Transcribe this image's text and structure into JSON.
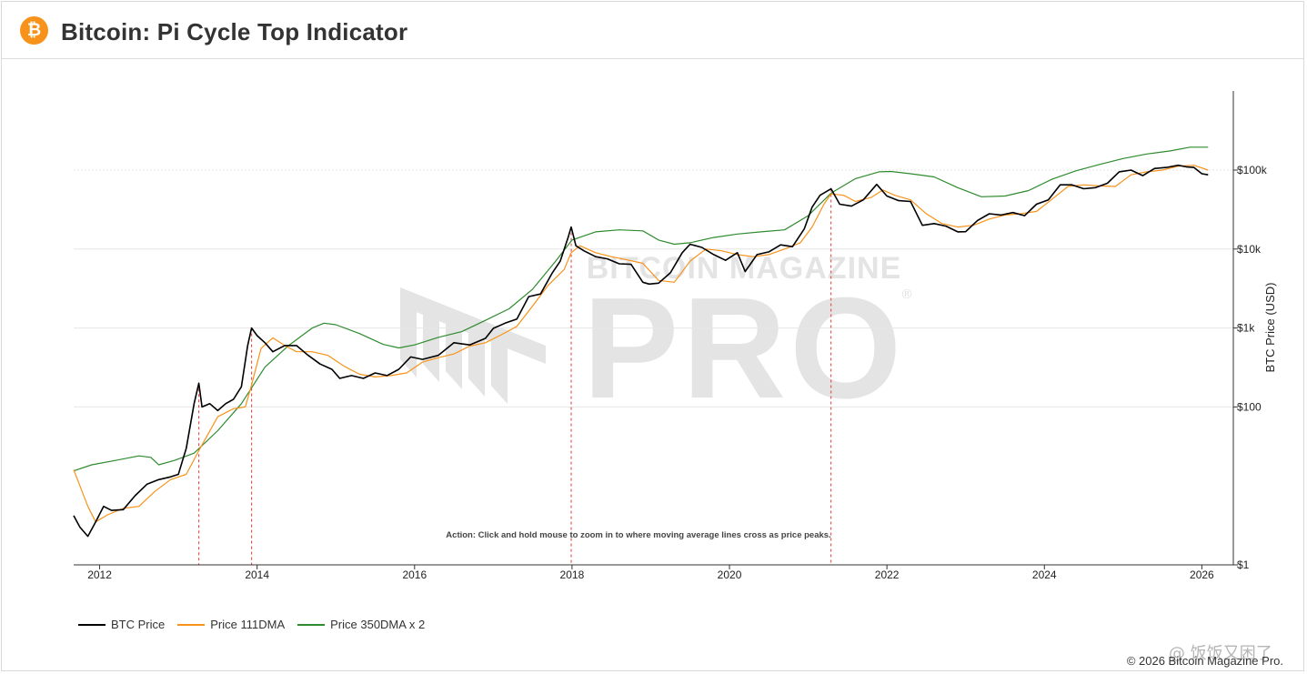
{
  "header": {
    "logo_glyph": "₿",
    "title": "Bitcoin: Pi Cycle Top Indicator"
  },
  "watermark": {
    "line1": "BITCOIN MAGAZINE",
    "line2": "PRO",
    "corner_text": "@ 饭饭又困了"
  },
  "annotation": "Action: Click and hold mouse to zoom in to where moving average lines cross as price peaks.",
  "copyright": "© 2026 Bitcoin Magazine Pro.",
  "colors": {
    "btc_price": "#000000",
    "dma111": "#f7931a",
    "dma350x2": "#2e8b2e",
    "cross_line": "#e53935",
    "grid": "#e6e6e6",
    "watermark": "#e4e4e4"
  },
  "chart_data": {
    "type": "line",
    "title": "Bitcoin: Pi Cycle Top Indicator",
    "xlabel": "",
    "ylabel": "BTC Price (USD)",
    "y_scale": "log",
    "ylim": [
      1,
      1000000
    ],
    "xlim": [
      2011.67,
      2026.4
    ],
    "x_ticks": [
      "2012",
      "2014",
      "2016",
      "2018",
      "2020",
      "2022",
      "2024",
      "2026"
    ],
    "y_ticks": [
      {
        "value": 1,
        "label": "$1"
      },
      {
        "value": 100,
        "label": "$100"
      },
      {
        "value": 1000,
        "label": "$1k"
      },
      {
        "value": 10000,
        "label": "$10k"
      },
      {
        "value": 100000,
        "label": "$100k"
      }
    ],
    "legend_position": "bottom-left",
    "cross_events": [
      2013.26,
      2013.93,
      2017.99,
      2021.29
    ],
    "series": [
      {
        "name": "BTC Price",
        "x": [
          2011.67,
          2011.75,
          2011.85,
          2011.95,
          2012.05,
          2012.15,
          2012.3,
          2012.45,
          2012.6,
          2012.75,
          2012.9,
          2013.0,
          2013.1,
          2013.2,
          2013.26,
          2013.3,
          2013.4,
          2013.5,
          2013.6,
          2013.7,
          2013.8,
          2013.88,
          2013.93,
          2014.0,
          2014.1,
          2014.2,
          2014.35,
          2014.5,
          2014.65,
          2014.8,
          2014.95,
          2015.05,
          2015.2,
          2015.35,
          2015.5,
          2015.65,
          2015.8,
          2015.95,
          2016.1,
          2016.3,
          2016.5,
          2016.7,
          2016.9,
          2017.0,
          2017.15,
          2017.3,
          2017.45,
          2017.6,
          2017.75,
          2017.85,
          2017.95,
          2017.99,
          2018.05,
          2018.15,
          2018.3,
          2018.45,
          2018.6,
          2018.75,
          2018.9,
          2018.98,
          2019.1,
          2019.25,
          2019.4,
          2019.5,
          2019.65,
          2019.8,
          2019.95,
          2020.1,
          2020.2,
          2020.35,
          2020.5,
          2020.65,
          2020.8,
          2020.95,
          2021.05,
          2021.15,
          2021.29,
          2021.4,
          2021.55,
          2021.7,
          2021.87,
          2022.0,
          2022.15,
          2022.3,
          2022.45,
          2022.6,
          2022.75,
          2022.9,
          2023.0,
          2023.15,
          2023.3,
          2023.45,
          2023.6,
          2023.75,
          2023.9,
          2024.05,
          2024.2,
          2024.35,
          2024.5,
          2024.65,
          2024.8,
          2024.95,
          2025.1,
          2025.25,
          2025.4,
          2025.55,
          2025.7,
          2025.8,
          2025.9,
          2026.0,
          2026.08
        ],
        "values": [
          4.2,
          3.0,
          2.3,
          3.5,
          5.5,
          4.9,
          5.0,
          7.5,
          10.5,
          12.0,
          13.0,
          14.0,
          30,
          110,
          200,
          100,
          110,
          90,
          110,
          125,
          180,
          600,
          1000,
          800,
          650,
          500,
          600,
          600,
          450,
          350,
          300,
          230,
          250,
          230,
          270,
          250,
          300,
          430,
          400,
          450,
          650,
          610,
          740,
          990,
          1150,
          1300,
          2500,
          2700,
          5000,
          7000,
          14000,
          19000,
          11000,
          9500,
          8000,
          7500,
          6500,
          6400,
          3800,
          3600,
          3700,
          5000,
          9000,
          11500,
          10500,
          8500,
          7200,
          9000,
          5200,
          8500,
          9200,
          11300,
          10700,
          18000,
          34000,
          48000,
          58000,
          37000,
          35000,
          42000,
          66000,
          47000,
          41000,
          40000,
          20000,
          21000,
          19500,
          16500,
          16600,
          23000,
          28000,
          27000,
          29000,
          26500,
          37000,
          42000,
          65000,
          65000,
          58000,
          60000,
          68000,
          95000,
          100000,
          85000,
          105000,
          108000,
          115000,
          110000,
          108000,
          90000,
          87000
        ]
      },
      {
        "name": "Price 111DMA",
        "x": [
          2011.67,
          2011.75,
          2011.85,
          2011.95,
          2012.1,
          2012.3,
          2012.5,
          2012.7,
          2012.9,
          2013.1,
          2013.26,
          2013.5,
          2013.7,
          2013.85,
          2013.93,
          2014.05,
          2014.2,
          2014.35,
          2014.5,
          2014.7,
          2014.9,
          2015.1,
          2015.3,
          2015.5,
          2015.7,
          2015.9,
          2016.1,
          2016.3,
          2016.5,
          2016.7,
          2016.9,
          2017.1,
          2017.3,
          2017.5,
          2017.7,
          2017.9,
          2017.99,
          2018.1,
          2018.3,
          2018.5,
          2018.7,
          2018.9,
          2019.1,
          2019.3,
          2019.5,
          2019.7,
          2019.9,
          2020.1,
          2020.3,
          2020.5,
          2020.7,
          2020.9,
          2021.05,
          2021.2,
          2021.29,
          2021.45,
          2021.6,
          2021.8,
          2021.95,
          2022.1,
          2022.3,
          2022.5,
          2022.7,
          2022.9,
          2023.1,
          2023.3,
          2023.5,
          2023.7,
          2023.9,
          2024.1,
          2024.3,
          2024.5,
          2024.7,
          2024.9,
          2025.1,
          2025.3,
          2025.5,
          2025.7,
          2025.9,
          2026.08
        ],
        "values": [
          16.0,
          10.0,
          5.5,
          3.5,
          4.3,
          5.2,
          5.5,
          8.5,
          12.0,
          14.0,
          28,
          75,
          95,
          100,
          190,
          550,
          750,
          600,
          500,
          500,
          450,
          330,
          260,
          240,
          250,
          270,
          370,
          420,
          470,
          590,
          650,
          820,
          1050,
          1900,
          3500,
          5500,
          9000,
          11000,
          9000,
          8000,
          7300,
          6600,
          4000,
          3800,
          7000,
          10000,
          9500,
          8500,
          8000,
          8500,
          10000,
          12000,
          19000,
          37000,
          50000,
          48000,
          40000,
          45000,
          56000,
          48000,
          42000,
          28000,
          21000,
          19000,
          20000,
          24000,
          27000,
          28000,
          30000,
          43000,
          62000,
          65000,
          63000,
          62000,
          87000,
          95000,
          100000,
          112000,
          115000,
          100000
        ]
      },
      {
        "name": "Price 350DMA x 2",
        "x": [
          2011.67,
          2011.9,
          2012.2,
          2012.5,
          2012.65,
          2012.75,
          2012.95,
          2013.2,
          2013.5,
          2013.8,
          2014.1,
          2014.4,
          2014.7,
          2014.85,
          2015.0,
          2015.3,
          2015.6,
          2015.8,
          2016.0,
          2016.3,
          2016.6,
          2016.9,
          2017.2,
          2017.5,
          2017.8,
          2018.0,
          2018.3,
          2018.6,
          2018.9,
          2019.1,
          2019.3,
          2019.5,
          2019.8,
          2020.1,
          2020.4,
          2020.7,
          2021.0,
          2021.29,
          2021.6,
          2021.9,
          2022.05,
          2022.3,
          2022.6,
          2022.9,
          2023.2,
          2023.5,
          2023.8,
          2024.1,
          2024.4,
          2024.7,
          2025.0,
          2025.3,
          2025.6,
          2025.85,
          2026.08
        ],
        "values": [
          15.5,
          18.5,
          21.0,
          24.0,
          23.0,
          18.5,
          21.0,
          26.0,
          50,
          110,
          320,
          600,
          1000,
          1150,
          1100,
          850,
          620,
          560,
          610,
          760,
          900,
          1250,
          1750,
          3100,
          7200,
          13000,
          16500,
          17500,
          17000,
          13000,
          11500,
          12000,
          14000,
          15500,
          16500,
          17500,
          26500,
          51000,
          78000,
          95000,
          96000,
          90000,
          82000,
          60000,
          46000,
          47000,
          55000,
          77000,
          98000,
          118000,
          140000,
          160000,
          175000,
          195000,
          195000
        ]
      }
    ]
  }
}
